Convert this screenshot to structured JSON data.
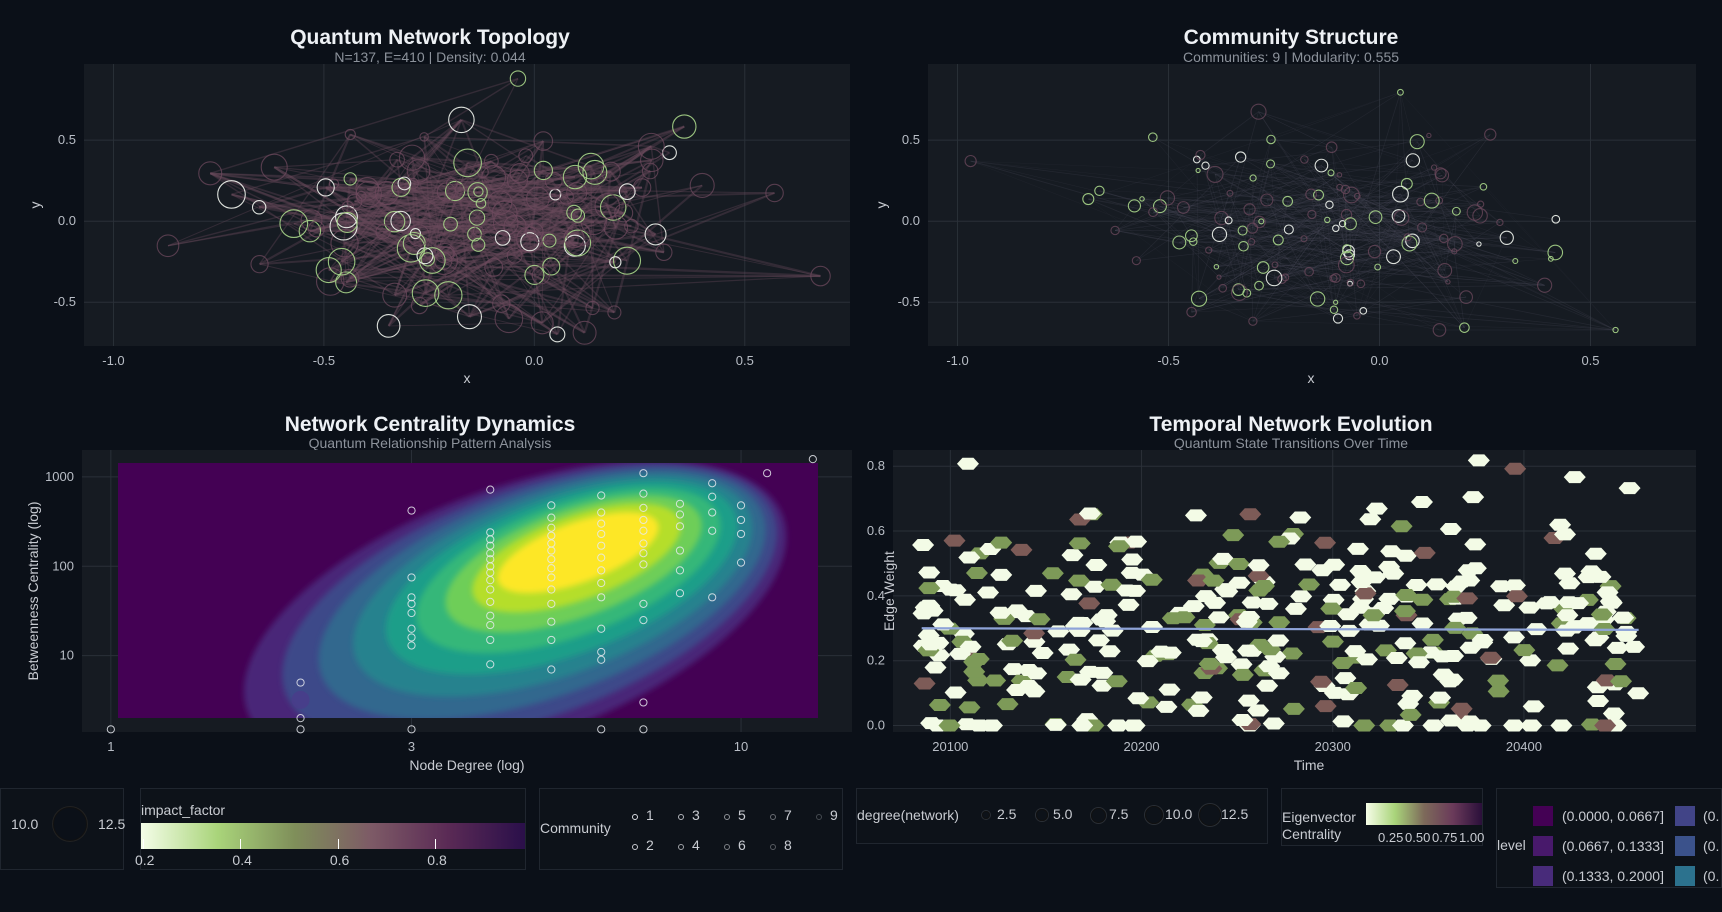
{
  "panels": {
    "topology": {
      "title": "Quantum Network Topology",
      "subtitle": "N=137, E=410 | Density: 0.044",
      "xlabel": "x",
      "ylabel": "y"
    },
    "community": {
      "title": "Community Structure",
      "subtitle": "Communities: 9 | Modularity: 0.555",
      "xlabel": "x",
      "ylabel": "y"
    },
    "centrality": {
      "title": "Network Centrality Dynamics",
      "subtitle": "Quantum Relationship Pattern Analysis",
      "xlabel": "Node Degree (log)",
      "ylabel": "Betweenness Centrality (log)"
    },
    "temporal": {
      "title": "Temporal Network Evolution",
      "subtitle": "Quantum State Transitions Over Time",
      "xlabel": "Time",
      "ylabel": "Edge Weight"
    }
  },
  "chart_data": [
    {
      "type": "scatter",
      "title": "Quantum Network Topology",
      "subtitle": "N=137, E=410 | Density: 0.044",
      "xlabel": "x",
      "ylabel": "y",
      "xlim": [
        -1.07,
        0.75
      ],
      "ylim": [
        -0.77,
        0.97
      ],
      "x_ticks": [
        -1.0,
        -0.5,
        0.0,
        0.5
      ],
      "x_tick_labels": [
        "-1.0",
        "-0.5",
        "0.0",
        "0.5"
      ],
      "y_ticks": [
        -0.5,
        0.0,
        0.5
      ],
      "y_tick_labels": [
        "-0.5",
        "0.0",
        "0.5"
      ],
      "grid": true
    },
    {
      "type": "scatter",
      "title": "Community Structure",
      "subtitle": "Communities: 9 | Modularity: 0.555",
      "xlabel": "x",
      "ylabel": "y",
      "xlim": [
        -1.07,
        0.75
      ],
      "ylim": [
        -0.77,
        0.97
      ],
      "x_ticks": [
        -1.0,
        -0.5,
        0.0,
        0.5
      ],
      "x_tick_labels": [
        "-1.0",
        "-0.5",
        "0.0",
        "0.5"
      ],
      "y_ticks": [
        -0.5,
        0.0,
        0.5
      ],
      "y_tick_labels": [
        "-0.5",
        "0.0",
        "0.5"
      ],
      "grid": true
    },
    {
      "type": "scatter",
      "title": "Network Centrality Dynamics",
      "subtitle": "Quantum Relationship Pattern Analysis",
      "xlabel": "Node Degree (log)",
      "ylabel": "Betweenness Centrality (log)",
      "x_scale": "log",
      "y_scale": "log",
      "xlim": [
        0.9,
        15
      ],
      "ylim": [
        1.4,
        2000
      ],
      "x_ticks": [
        1,
        3,
        10
      ],
      "x_tick_labels": [
        "1",
        "3",
        "10"
      ],
      "y_ticks": [
        10,
        100,
        1000
      ],
      "y_tick_labels": [
        "10",
        "100",
        "1000"
      ],
      "density_peak": {
        "x": 5.5,
        "y": 160
      },
      "points": [
        {
          "x": 1,
          "y": 1.5
        },
        {
          "x": 2,
          "y": 5
        },
        {
          "x": 2,
          "y": 2
        },
        {
          "x": 2,
          "y": 1.5
        },
        {
          "x": 3,
          "y": 420
        },
        {
          "x": 3,
          "y": 75
        },
        {
          "x": 3,
          "y": 45
        },
        {
          "x": 3,
          "y": 38
        },
        {
          "x": 3,
          "y": 30
        },
        {
          "x": 3,
          "y": 20
        },
        {
          "x": 3,
          "y": 16
        },
        {
          "x": 3,
          "y": 13
        },
        {
          "x": 3,
          "y": 1.5
        },
        {
          "x": 4,
          "y": 720
        },
        {
          "x": 4,
          "y": 240
        },
        {
          "x": 4,
          "y": 200
        },
        {
          "x": 4,
          "y": 170
        },
        {
          "x": 4,
          "y": 140
        },
        {
          "x": 4,
          "y": 120
        },
        {
          "x": 4,
          "y": 100
        },
        {
          "x": 4,
          "y": 85
        },
        {
          "x": 4,
          "y": 70
        },
        {
          "x": 4,
          "y": 55
        },
        {
          "x": 4,
          "y": 40
        },
        {
          "x": 4,
          "y": 28
        },
        {
          "x": 4,
          "y": 22
        },
        {
          "x": 4,
          "y": 15
        },
        {
          "x": 4,
          "y": 8
        },
        {
          "x": 5,
          "y": 480
        },
        {
          "x": 5,
          "y": 350
        },
        {
          "x": 5,
          "y": 270
        },
        {
          "x": 5,
          "y": 220
        },
        {
          "x": 5,
          "y": 180
        },
        {
          "x": 5,
          "y": 150
        },
        {
          "x": 5,
          "y": 120
        },
        {
          "x": 5,
          "y": 95
        },
        {
          "x": 5,
          "y": 75
        },
        {
          "x": 5,
          "y": 55
        },
        {
          "x": 5,
          "y": 38
        },
        {
          "x": 5,
          "y": 24
        },
        {
          "x": 5,
          "y": 15
        },
        {
          "x": 5,
          "y": 7
        },
        {
          "x": 6,
          "y": 620
        },
        {
          "x": 6,
          "y": 400
        },
        {
          "x": 6,
          "y": 300
        },
        {
          "x": 6,
          "y": 230
        },
        {
          "x": 6,
          "y": 170
        },
        {
          "x": 6,
          "y": 125
        },
        {
          "x": 6,
          "y": 90
        },
        {
          "x": 6,
          "y": 65
        },
        {
          "x": 6,
          "y": 45
        },
        {
          "x": 6,
          "y": 20
        },
        {
          "x": 6,
          "y": 11
        },
        {
          "x": 6,
          "y": 9
        },
        {
          "x": 6,
          "y": 1.5
        },
        {
          "x": 7,
          "y": 1100
        },
        {
          "x": 7,
          "y": 650
        },
        {
          "x": 7,
          "y": 450
        },
        {
          "x": 7,
          "y": 330
        },
        {
          "x": 7,
          "y": 250
        },
        {
          "x": 7,
          "y": 180
        },
        {
          "x": 7,
          "y": 140
        },
        {
          "x": 7,
          "y": 105
        },
        {
          "x": 7,
          "y": 38
        },
        {
          "x": 7,
          "y": 25
        },
        {
          "x": 7,
          "y": 3
        },
        {
          "x": 7,
          "y": 1.5
        },
        {
          "x": 8,
          "y": 500
        },
        {
          "x": 8,
          "y": 380
        },
        {
          "x": 8,
          "y": 280
        },
        {
          "x": 8,
          "y": 150
        },
        {
          "x": 8,
          "y": 90
        },
        {
          "x": 8,
          "y": 50
        },
        {
          "x": 9,
          "y": 850
        },
        {
          "x": 9,
          "y": 600
        },
        {
          "x": 9,
          "y": 400
        },
        {
          "x": 9,
          "y": 250
        },
        {
          "x": 9,
          "y": 45
        },
        {
          "x": 10,
          "y": 480
        },
        {
          "x": 10,
          "y": 330
        },
        {
          "x": 10,
          "y": 230
        },
        {
          "x": 10,
          "y": 110
        },
        {
          "x": 11,
          "y": 1100
        },
        {
          "x": 13,
          "y": 1580
        }
      ],
      "grid": true
    },
    {
      "type": "heatmap",
      "title": "Temporal Network Evolution",
      "subtitle": "Quantum State Transitions Over Time",
      "xlabel": "Time",
      "ylabel": "Edge Weight",
      "xlim": [
        20070,
        20490
      ],
      "ylim": [
        -0.02,
        0.85
      ],
      "x_ticks": [
        20100,
        20200,
        20300,
        20400
      ],
      "x_tick_labels": [
        "20100",
        "20200",
        "20300",
        "20400"
      ],
      "y_ticks": [
        0.0,
        0.2,
        0.4,
        0.6,
        0.8
      ],
      "y_tick_labels": [
        "0.0",
        "0.2",
        "0.4",
        "0.6",
        "0.8"
      ],
      "trend_line": {
        "x": [
          20085,
          20460
        ],
        "y": [
          0.3,
          0.295
        ]
      },
      "grid": true
    }
  ],
  "legends": {
    "size_fragment": {
      "labels": [
        "10.0",
        "12.5"
      ]
    },
    "impact": {
      "title": "impact_factor",
      "ticks": [
        "0.2",
        "0.4",
        "0.6",
        "0.8"
      ],
      "colors": [
        "#f4fde8",
        "#a9d47a",
        "#7f8f5a",
        "#7d5a66",
        "#5a2a55",
        "#2a0f4a"
      ]
    },
    "community": {
      "title": "Community",
      "items": [
        "1",
        "2",
        "3",
        "4",
        "5",
        "6",
        "7",
        "8",
        "9"
      ]
    },
    "degree": {
      "title": "degree(network)",
      "items": [
        "2.5",
        "5.0",
        "7.5",
        "10.0",
        "12.5"
      ]
    },
    "eigen": {
      "title_lines": [
        "Eigenvector",
        "Centrality"
      ],
      "ticks": [
        "0.25",
        "0.50",
        "0.75",
        "1.00"
      ],
      "colors": [
        "#f6fde8",
        "#a9d47a",
        "#7d6a5a",
        "#6a3a5a",
        "#2a0f3a"
      ]
    },
    "level": {
      "title": "level",
      "items": [
        {
          "label": "(0.0000, 0.0667]",
          "color": "#440154"
        },
        {
          "label": "(0.0667, 0.1333]",
          "color": "#48196b"
        },
        {
          "label": "(0.1333, 0.2000]",
          "color": "#482b7a"
        }
      ],
      "items_col2": [
        {
          "label": "(0.",
          "color": "#414487"
        },
        {
          "label": "(0.",
          "color": "#3b528b"
        },
        {
          "label": "(0.",
          "color": "#2c728e"
        }
      ]
    }
  }
}
